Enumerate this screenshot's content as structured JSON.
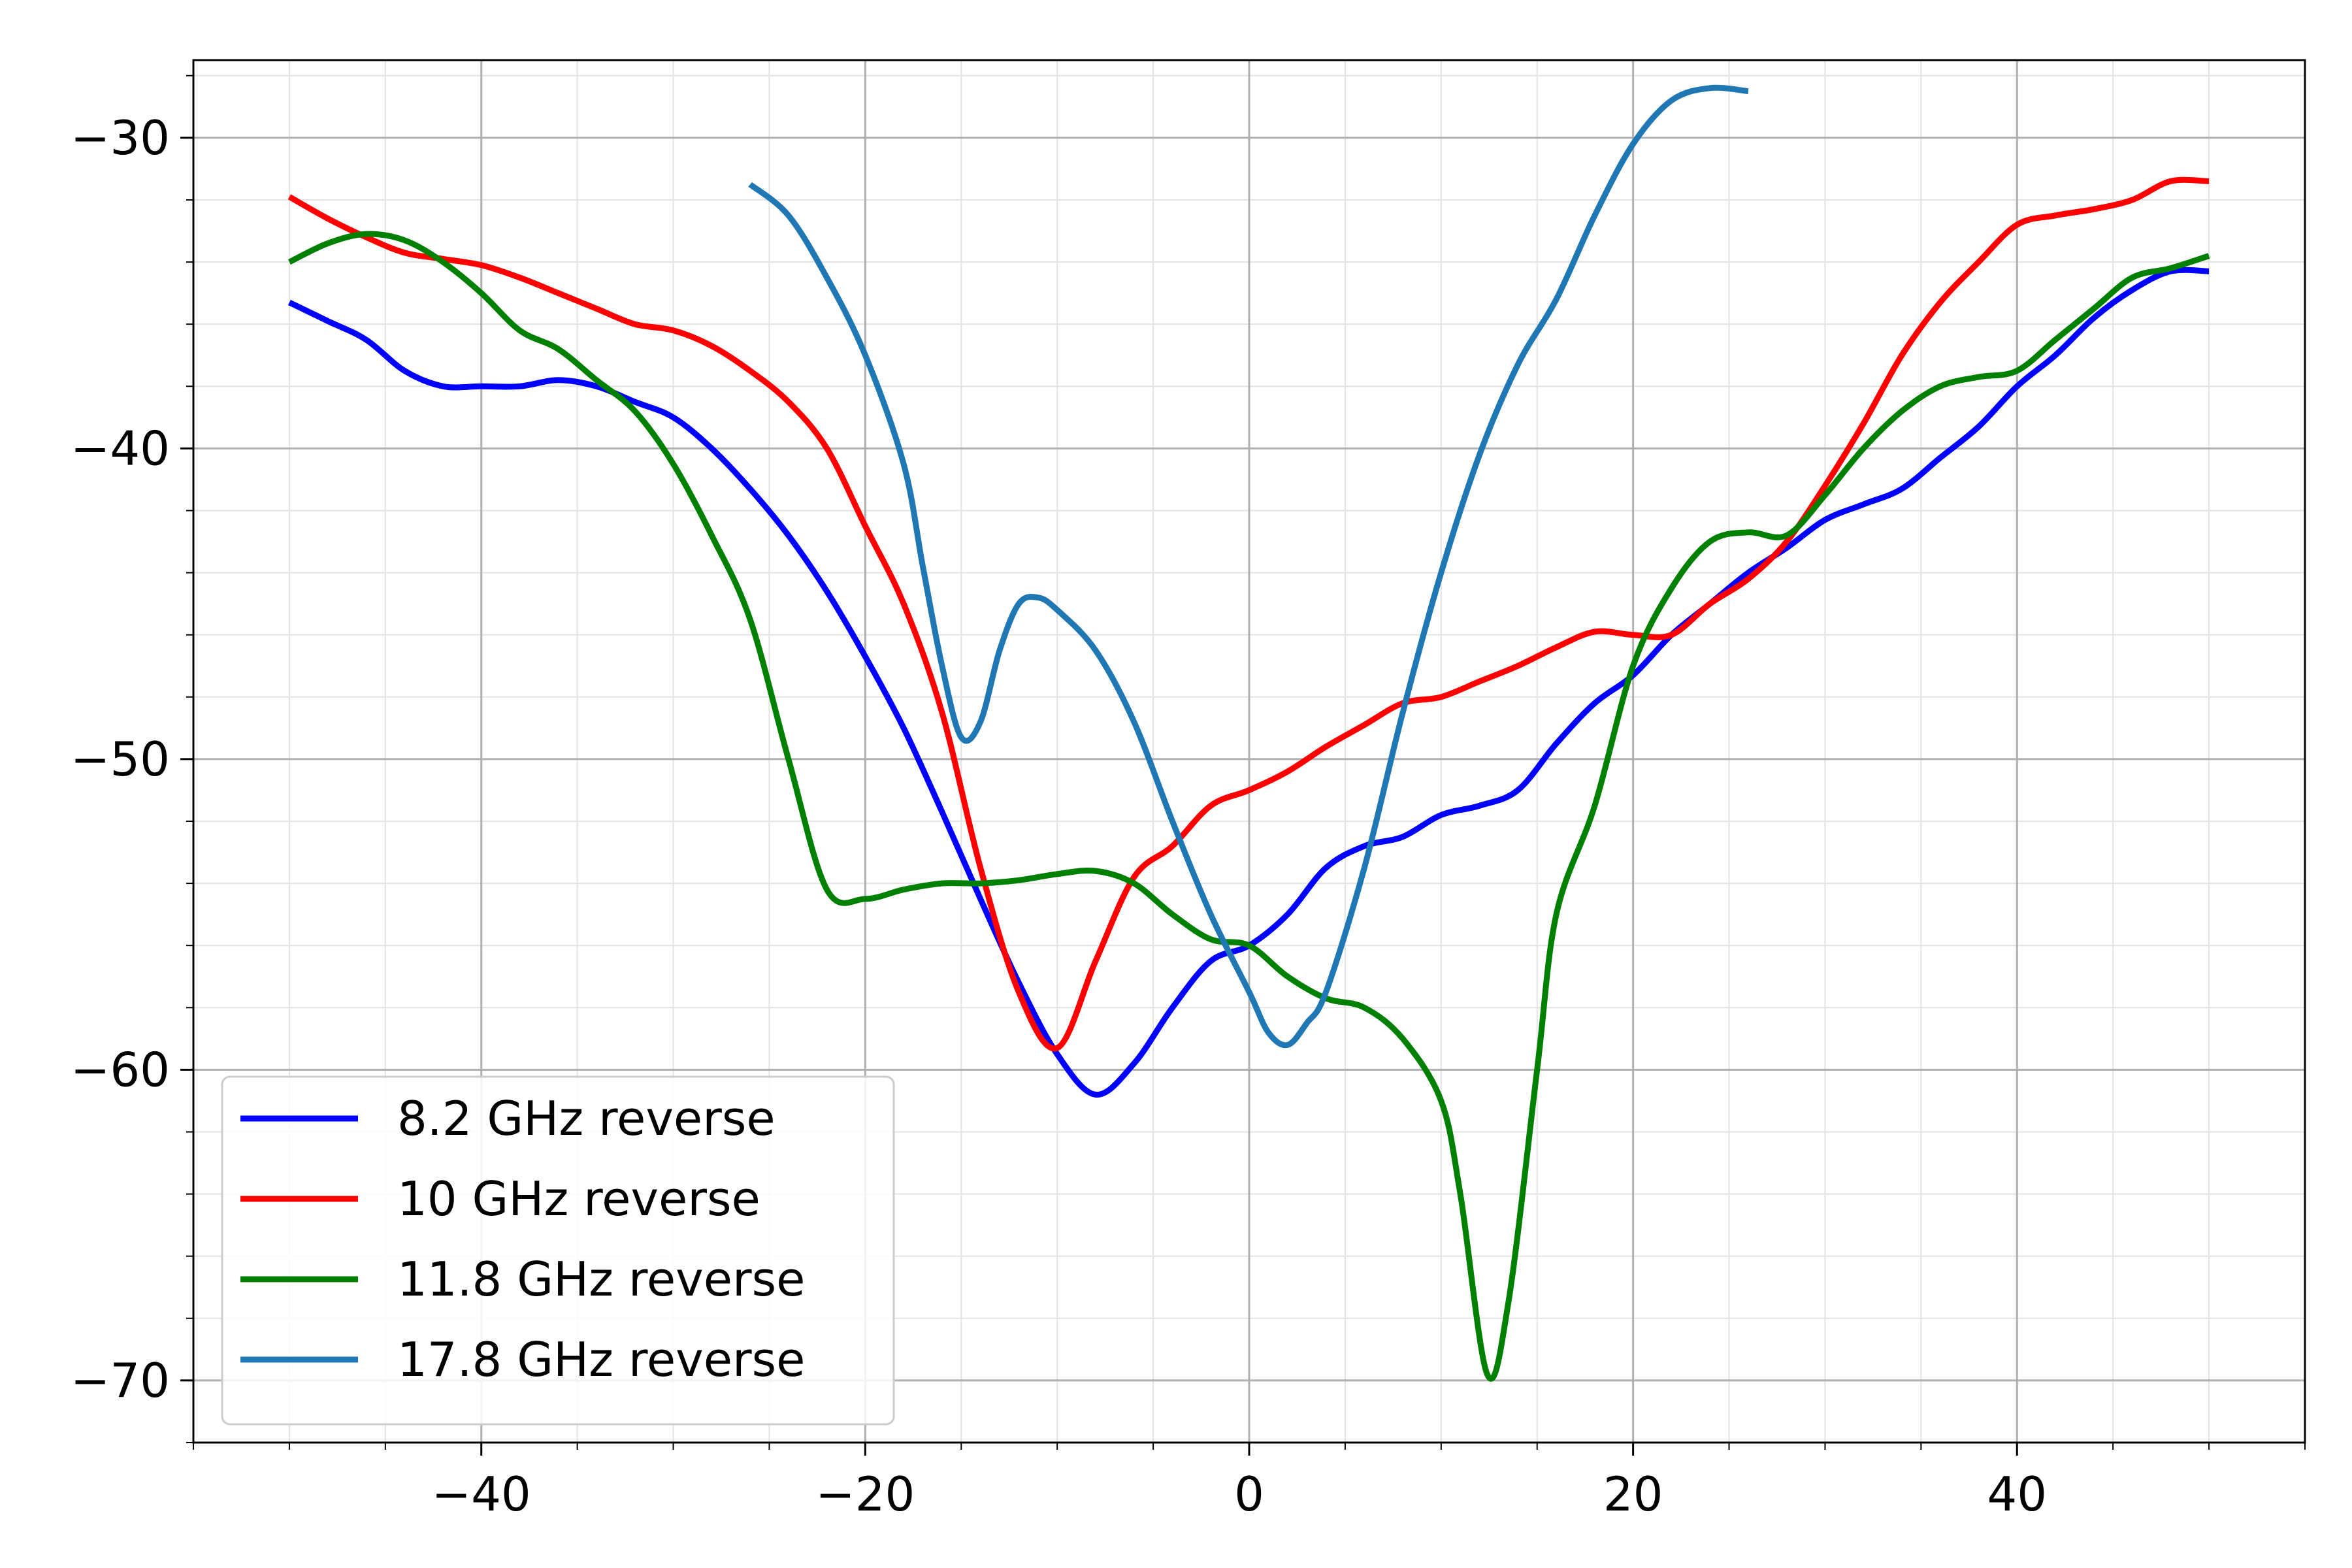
{
  "chart_data": {
    "type": "line",
    "title": "",
    "xlabel": "",
    "ylabel": "",
    "xlim": [
      -55,
      55
    ],
    "ylim": [
      -72,
      -27.5
    ],
    "xticks": [
      -40,
      -20,
      0,
      20,
      40
    ],
    "yticks": [
      -30,
      -40,
      -50,
      -60,
      -70
    ],
    "xtick_labels": [
      "−40",
      "−20",
      "0",
      "20",
      "40"
    ],
    "ytick_labels": [
      "−30",
      "−40",
      "−50",
      "−60",
      "−70"
    ],
    "grid": true,
    "minor_grid": true,
    "legend_position": "lower-left",
    "series": [
      {
        "name": "8.2 GHz reverse",
        "color": "#0000ff",
        "x": [
          -50,
          -48,
          -46,
          -44,
          -42,
          -40,
          -38,
          -36,
          -34,
          -32,
          -30,
          -28,
          -26,
          -24,
          -22,
          -20,
          -18,
          -16,
          -14,
          -12,
          -10,
          -8,
          -6,
          -4,
          -2,
          0,
          2,
          4,
          6,
          8,
          10,
          12,
          14,
          16,
          18,
          20,
          22,
          24,
          26,
          28,
          30,
          32,
          34,
          36,
          38,
          40,
          42,
          44,
          46,
          48,
          50
        ],
        "y": [
          -35.3,
          -35.9,
          -36.5,
          -37.5,
          -38.0,
          -38.0,
          -38.0,
          -37.8,
          -38.0,
          -38.5,
          -39.0,
          -40.0,
          -41.3,
          -42.8,
          -44.6,
          -46.7,
          -49.0,
          -51.7,
          -54.5,
          -57.2,
          -59.5,
          -60.8,
          -59.8,
          -58.0,
          -56.5,
          -56.0,
          -55.0,
          -53.5,
          -52.8,
          -52.5,
          -51.8,
          -51.5,
          -51.0,
          -49.5,
          -48.2,
          -47.3,
          -46.0,
          -45.0,
          -44.0,
          -43.2,
          -42.3,
          -41.8,
          -41.3,
          -40.3,
          -39.3,
          -38.0,
          -37.0,
          -35.8,
          -34.9,
          -34.3,
          -34.3
        ]
      },
      {
        "name": "10 GHz reverse",
        "color": "#ff0000",
        "x": [
          -50,
          -48,
          -46,
          -44,
          -42,
          -40,
          -38,
          -36,
          -34,
          -32,
          -30,
          -28,
          -26,
          -24,
          -22,
          -20,
          -18,
          -16,
          -14,
          -12,
          -10,
          -8,
          -6,
          -4,
          -2,
          0,
          2,
          4,
          6,
          8,
          10,
          12,
          14,
          16,
          18,
          20,
          22,
          24,
          26,
          28,
          30,
          32,
          34,
          36,
          38,
          40,
          42,
          44,
          46,
          48,
          50
        ],
        "y": [
          -31.9,
          -32.6,
          -33.2,
          -33.7,
          -33.9,
          -34.1,
          -34.5,
          -35.0,
          -35.5,
          -36.0,
          -36.2,
          -36.7,
          -37.5,
          -38.5,
          -40.0,
          -42.5,
          -45.0,
          -48.5,
          -53.5,
          -57.5,
          -59.3,
          -56.5,
          -53.8,
          -52.8,
          -51.5,
          -51.0,
          -50.4,
          -49.6,
          -48.9,
          -48.2,
          -48.0,
          -47.5,
          -47.0,
          -46.4,
          -45.9,
          -46.0,
          -46.0,
          -45.0,
          -44.2,
          -43.0,
          -41.2,
          -39.2,
          -37.0,
          -35.3,
          -34.0,
          -32.8,
          -32.5,
          -32.3,
          -32.0,
          -31.4,
          -31.4
        ]
      },
      {
        "name": "11.8 GHz reverse",
        "color": "#008000",
        "x": [
          -50,
          -48,
          -46,
          -44,
          -42,
          -40,
          -38,
          -36,
          -34,
          -32,
          -30,
          -28,
          -26,
          -24,
          -22,
          -20,
          -18,
          -16,
          -14,
          -12,
          -10,
          -8,
          -6,
          -4,
          -2,
          0,
          2,
          4,
          6,
          8,
          10,
          11,
          12.4,
          13.5,
          15,
          16,
          18,
          20,
          22,
          24,
          26,
          28,
          30,
          32,
          34,
          36,
          38,
          40,
          42,
          44,
          46,
          48,
          50
        ],
        "y": [
          -34.0,
          -33.4,
          -33.1,
          -33.3,
          -34.0,
          -35.0,
          -36.2,
          -36.8,
          -37.8,
          -38.8,
          -40.5,
          -42.8,
          -45.5,
          -50.0,
          -54.2,
          -54.5,
          -54.2,
          -54.0,
          -54.0,
          -53.9,
          -53.7,
          -53.6,
          -54.0,
          -55.0,
          -55.8,
          -56.0,
          -57.0,
          -57.7,
          -58.0,
          -59.0,
          -61.0,
          -64.0,
          -69.8,
          -67.5,
          -60.0,
          -55.0,
          -51.5,
          -47.0,
          -44.5,
          -43.0,
          -42.7,
          -42.8,
          -41.5,
          -40.0,
          -38.8,
          -38.0,
          -37.7,
          -37.5,
          -36.5,
          -35.5,
          -34.5,
          -34.2,
          -33.8
        ]
      },
      {
        "name": "17.8 GHz reverse",
        "color": "#1f77b4",
        "x": [
          -26,
          -24,
          -22,
          -20,
          -18,
          -17,
          -16,
          -15,
          -14,
          -13,
          -12,
          -11,
          -10,
          -8,
          -6,
          -4,
          -2,
          0,
          1,
          2,
          3,
          4,
          6,
          8,
          10,
          12,
          14,
          16,
          18,
          20,
          22,
          24,
          26
        ],
        "y": [
          -31.5,
          -32.5,
          -34.5,
          -37.0,
          -40.5,
          -43.8,
          -47.0,
          -49.3,
          -48.8,
          -46.5,
          -45.0,
          -44.8,
          -45.2,
          -46.5,
          -48.8,
          -52.0,
          -55.0,
          -57.5,
          -58.8,
          -59.2,
          -58.5,
          -57.5,
          -53.5,
          -48.5,
          -44.0,
          -40.2,
          -37.3,
          -35.2,
          -32.5,
          -30.2,
          -28.8,
          -28.4,
          -28.5
        ]
      }
    ]
  }
}
